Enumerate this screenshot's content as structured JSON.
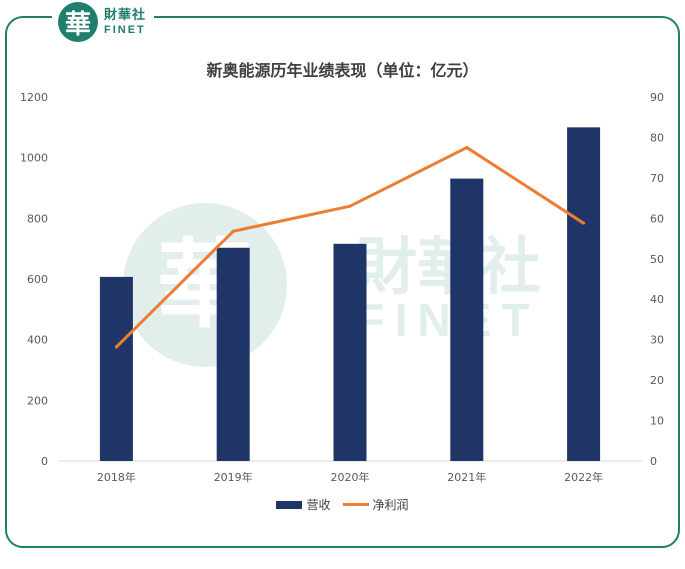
{
  "logo": {
    "glyph": "華",
    "name_cn": "財華社",
    "name_en": "FINET"
  },
  "watermark": {
    "glyph": "華",
    "name_cn": "財華社",
    "name_en": "FINET"
  },
  "chart_data": {
    "type": "bar+line",
    "title": "新奥能源历年业绩表现（单位：亿元）",
    "categories": [
      "2018年",
      "2019年",
      "2020年",
      "2021年",
      "2022年"
    ],
    "series": [
      {
        "name": "营收",
        "type": "bar",
        "axis": "left",
        "color": "#1f3567",
        "values": [
          607,
          703,
          716,
          931,
          1100
        ]
      },
      {
        "name": "净利润",
        "type": "line",
        "axis": "right",
        "color": "#ed7d31",
        "values": [
          28.2,
          56.8,
          63.0,
          77.5,
          58.8
        ]
      }
    ],
    "y_left": {
      "min": 0,
      "max": 1200,
      "ticks": [
        0,
        200,
        400,
        600,
        800,
        1000,
        1200
      ]
    },
    "y_right": {
      "min": 0,
      "max": 90,
      "ticks": [
        0,
        10,
        20,
        30,
        40,
        50,
        60,
        70,
        80,
        90
      ]
    },
    "legend_position": "bottom",
    "grid": false
  }
}
